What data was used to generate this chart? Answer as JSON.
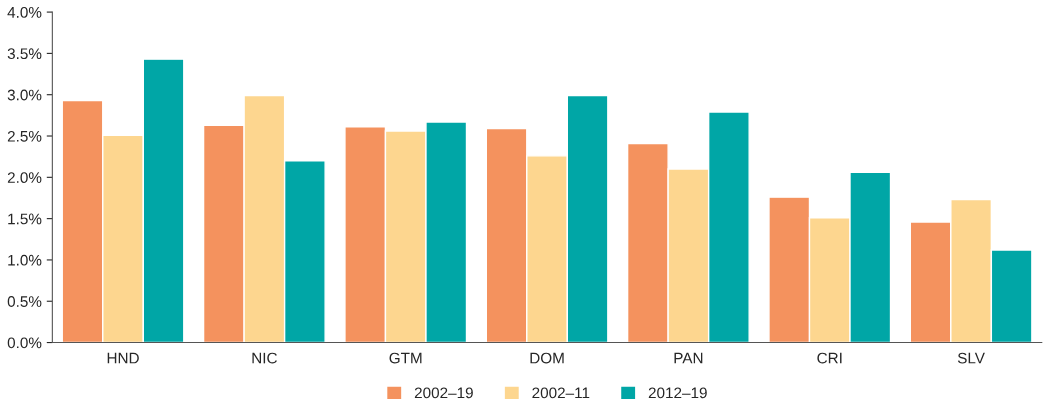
{
  "chart_data": {
    "type": "bar",
    "categories": [
      "HND",
      "NIC",
      "GTM",
      "DOM",
      "PAN",
      "CRI",
      "SLV"
    ],
    "series": [
      {
        "name": "2002–19",
        "color": "#f4925e",
        "values": [
          2.93,
          2.63,
          2.61,
          2.59,
          2.41,
          1.76,
          1.46
        ]
      },
      {
        "name": "2002–11",
        "color": "#fdd68f",
        "values": [
          2.51,
          2.99,
          2.56,
          2.26,
          2.1,
          1.51,
          1.73
        ]
      },
      {
        "name": "2012–19",
        "color": "#00a6a6",
        "values": [
          3.43,
          2.2,
          2.67,
          2.99,
          2.79,
          2.06,
          1.12
        ]
      }
    ],
    "ylim": [
      0,
      4
    ],
    "yticks": [
      {
        "value": 0,
        "label": "0.0%"
      },
      {
        "value": 0.5,
        "label": "0.5%"
      },
      {
        "value": 1,
        "label": "1.0%"
      },
      {
        "value": 1.5,
        "label": "1.5%"
      },
      {
        "value": 2,
        "label": "2.0%"
      },
      {
        "value": 2.5,
        "label": "2.5%"
      },
      {
        "value": 3,
        "label": "3.0%"
      },
      {
        "value": 3.5,
        "label": "3.5%"
      },
      {
        "value": 4,
        "label": "4.0%"
      }
    ],
    "grid": false,
    "legend": "bottom"
  }
}
